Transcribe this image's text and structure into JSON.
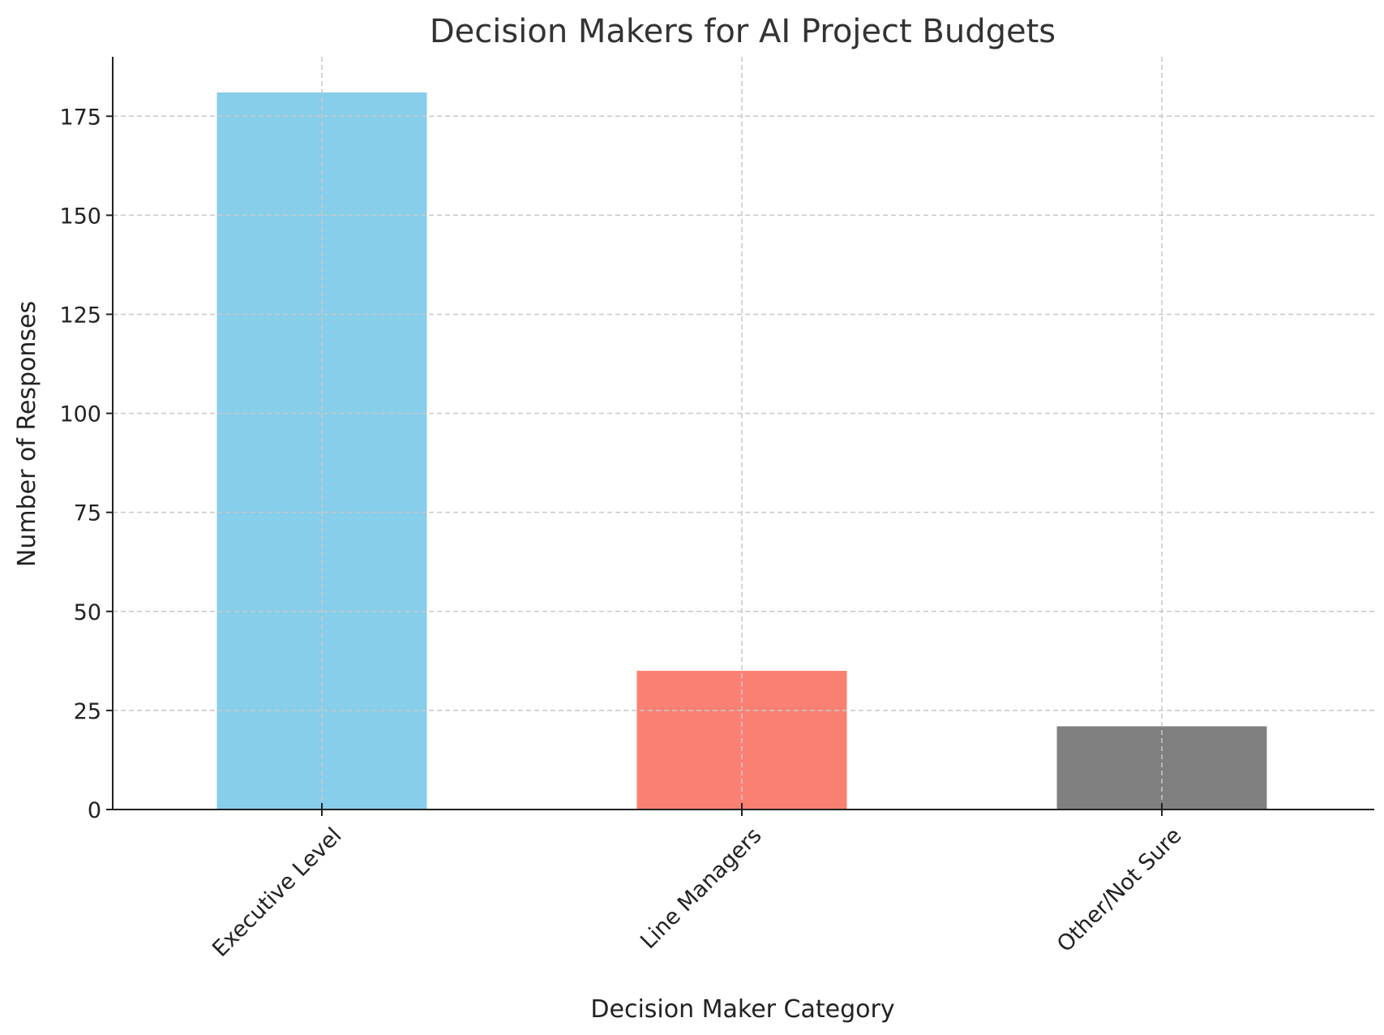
{
  "chart_data": {
    "type": "bar",
    "title": "Decision Makers for AI Project Budgets",
    "xlabel": "Decision Maker Category",
    "ylabel": "Number of Responses",
    "categories": [
      "Executive Level",
      "Line Managers",
      "Other/Not Sure"
    ],
    "values": [
      181,
      35,
      21
    ],
    "colors": [
      "#87ceeb",
      "#fa8072",
      "#808080"
    ],
    "ylim": [
      0,
      190
    ],
    "yticks": [
      0,
      25,
      50,
      75,
      100,
      125,
      150,
      175
    ],
    "grid": true,
    "x_tick_rotation_deg": 45
  }
}
